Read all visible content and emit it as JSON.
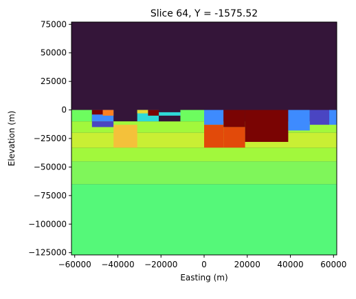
{
  "chart_data": {
    "type": "heatmap",
    "title": "Slice 64, Y = -1575.52",
    "xlabel": "Easting (m)",
    "ylabel": "Elevation (m)",
    "xlim": [
      -61500,
      61500
    ],
    "ylim": [
      -127000,
      77000
    ],
    "grid": false,
    "legend": "none",
    "x_ticks": [
      -60000,
      -40000,
      -20000,
      0,
      20000,
      40000,
      60000
    ],
    "x_tick_labels": [
      "−60000",
      "−40000",
      "−20000",
      "0",
      "20000",
      "40000",
      "60000"
    ],
    "y_ticks": [
      75000,
      50000,
      25000,
      0,
      -25000,
      -50000,
      -75000,
      -100000,
      -125000
    ],
    "y_tick_labels": [
      "75000",
      "50000",
      "25000",
      "0",
      "−25000",
      "−50000",
      "−75000",
      "−100000",
      "−125000"
    ],
    "colors": {
      "air": "#341539",
      "deep": "#55f879",
      "lime": "#7ff65a",
      "green_yellow": "#a2f83c",
      "yellow_green": "#c9ef34",
      "yellow": "#e3d936",
      "orange_yellow": "#f4c13a",
      "light_green": "#6dfc5f",
      "cyan": "#2fd9d8",
      "blue": "#3e8bfe",
      "indigo": "#4a45c2",
      "red": "#7a0403",
      "orange_red": "#e24a0a",
      "orange": "#fb8022",
      "dark_purple": "#30123b"
    },
    "cells": [
      {
        "x": [
          -61500,
          61500
        ],
        "y": [
          -127000,
          77000
        ],
        "c": "air"
      },
      {
        "x": [
          -61500,
          61500
        ],
        "y": [
          -127000,
          -65000
        ],
        "c": "deep"
      },
      {
        "x": [
          -61500,
          61500
        ],
        "y": [
          -65000,
          -45000
        ],
        "c": "lime"
      },
      {
        "x": [
          -61500,
          61500
        ],
        "y": [
          -45000,
          -33000
        ],
        "c": "green_yellow"
      },
      {
        "x": [
          -61500,
          61500
        ],
        "y": [
          -33000,
          -20000
        ],
        "c": "yellow_green"
      },
      {
        "x": [
          -61500,
          61500
        ],
        "y": [
          -20000,
          -10000
        ],
        "c": "green_yellow"
      },
      {
        "x": [
          -61500,
          -52000
        ],
        "y": [
          -10000,
          0
        ],
        "c": "light_green"
      },
      {
        "x": [
          -52000,
          -42000
        ],
        "y": [
          -10000,
          0
        ],
        "c": "blue"
      },
      {
        "x": [
          -52000,
          -47000
        ],
        "y": [
          -4000,
          0
        ],
        "c": "red"
      },
      {
        "x": [
          -47000,
          -42000
        ],
        "y": [
          -5000,
          0
        ],
        "c": "orange"
      },
      {
        "x": [
          -52000,
          -42000
        ],
        "y": [
          -15000,
          -10000
        ],
        "c": "indigo"
      },
      {
        "x": [
          -42000,
          -31000
        ],
        "y": [
          -33000,
          -13000
        ],
        "c": "orange_yellow"
      },
      {
        "x": [
          -31000,
          -21000
        ],
        "y": [
          -10000,
          0
        ],
        "c": "cyan"
      },
      {
        "x": [
          -31000,
          -26000
        ],
        "y": [
          -3000,
          0
        ],
        "c": "yellow"
      },
      {
        "x": [
          -26000,
          -21000
        ],
        "y": [
          -5000,
          0
        ],
        "c": "red"
      },
      {
        "x": [
          -21000,
          -11000
        ],
        "y": [
          -10000,
          0
        ],
        "c": "air"
      },
      {
        "x": [
          -21000,
          -11000
        ],
        "y": [
          -5000,
          -2000
        ],
        "c": "cyan"
      },
      {
        "x": [
          -11000,
          0
        ],
        "y": [
          -10000,
          0
        ],
        "c": "light_green"
      },
      {
        "x": [
          0,
          9000
        ],
        "y": [
          -13000,
          0
        ],
        "c": "blue"
      },
      {
        "x": [
          0,
          9000
        ],
        "y": [
          -33000,
          -13000
        ],
        "c": "orange_red"
      },
      {
        "x": [
          9000,
          19000
        ],
        "y": [
          -15000,
          0
        ],
        "c": "red"
      },
      {
        "x": [
          9000,
          19000
        ],
        "y": [
          -33000,
          -15000
        ],
        "c": "orange_red"
      },
      {
        "x": [
          19000,
          39000
        ],
        "y": [
          -28000,
          0
        ],
        "c": "red"
      },
      {
        "x": [
          39000,
          49000
        ],
        "y": [
          -18000,
          0
        ],
        "c": "blue"
      },
      {
        "x": [
          49000,
          58000
        ],
        "y": [
          -13000,
          0
        ],
        "c": "indigo"
      },
      {
        "x": [
          58000,
          61500
        ],
        "y": [
          -13000,
          0
        ],
        "c": "blue"
      }
    ]
  }
}
